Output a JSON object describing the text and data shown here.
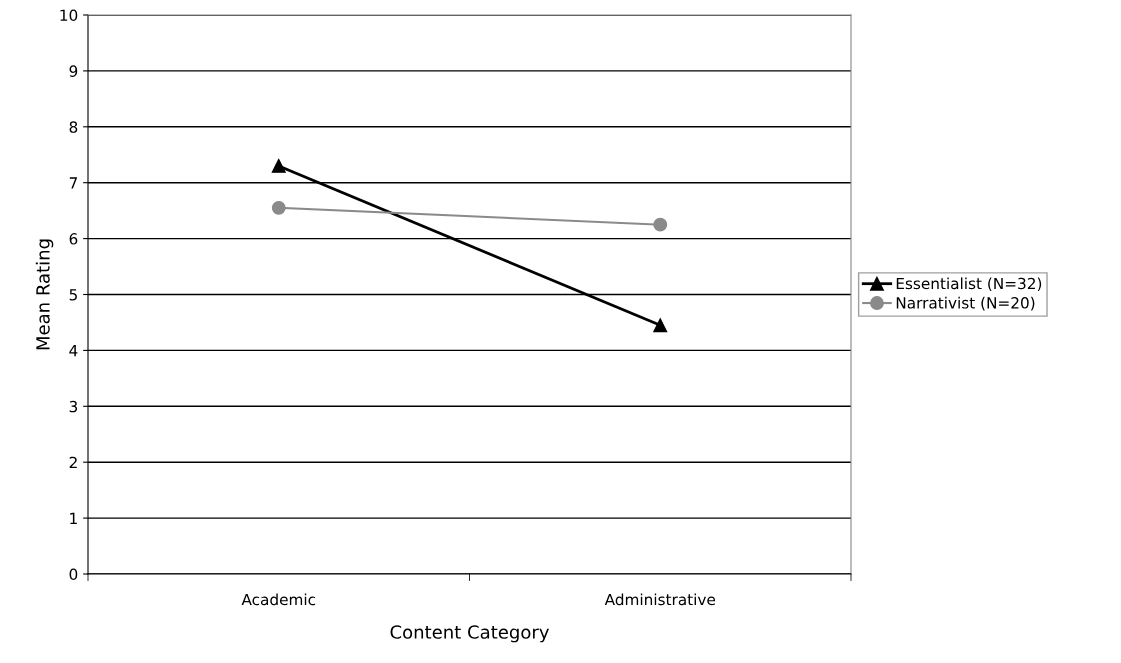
{
  "chart_data": {
    "type": "line",
    "xlabel": "Content Category",
    "ylabel": "Mean Rating",
    "categories": [
      "Academic",
      "Administrative"
    ],
    "series": [
      {
        "name": "Essentialist (N=32)",
        "color": "#000000",
        "values": [
          7.3,
          4.45
        ],
        "marker": "triangle"
      },
      {
        "name": "Narrativist (N=20)",
        "color": "#8a8a8a",
        "values": [
          6.55,
          6.25
        ],
        "marker": "circle"
      }
    ],
    "ylim": [
      0,
      10
    ],
    "yticks": [
      0,
      1,
      2,
      3,
      4,
      5,
      6,
      7,
      8,
      9,
      10
    ],
    "grid": "y",
    "legend": "right"
  }
}
